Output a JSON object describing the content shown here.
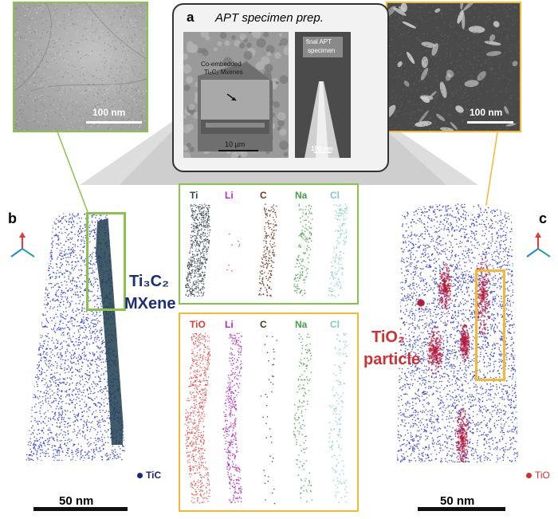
{
  "panels": {
    "a": {
      "letter": "a",
      "title": "APT specimen prep.",
      "annotation": "Co-embedded Ti₃C₂ Mxenes",
      "annotation_line1": "Co-embedded",
      "annotation_line2": "Ti₃C₂ Mxenes",
      "scale_left": "10 µm",
      "tip_label_line1": "final APT",
      "tip_label_line2": "specimen",
      "scale_right": "100 nm"
    },
    "tem_left": {
      "scale": "100 nm"
    },
    "tem_right": {
      "scale": "100 nm"
    },
    "b": {
      "letter": "b",
      "legend_label": "TiC",
      "legend_color": "#1a237e",
      "scale": "50 nm",
      "feature_line1": "Ti₃C₂",
      "feature_line2": "MXene",
      "feature_color": "#1a2e7a"
    },
    "c": {
      "letter": "c",
      "legend_label": "TiO",
      "legend_color": "#d32f2f",
      "scale": "50 nm",
      "feature_line1": "TiO₂",
      "feature_line2": "particle",
      "feature_color": "#d32f2f"
    }
  },
  "elemental_maps": {
    "top": {
      "border_color": "#8bc34a",
      "labels": [
        {
          "text": "Ti",
          "color": "#37474f"
        },
        {
          "text": "Li",
          "color": "#c026d3"
        },
        {
          "text": "C",
          "color": "#6d3b1f"
        },
        {
          "text": "Na",
          "color": "#43a047"
        },
        {
          "text": "Cl",
          "color": "#80cbc4"
        }
      ]
    },
    "bottom": {
      "border_color": "#f5b82e",
      "labels": [
        {
          "text": "TiO",
          "color": "#e53935"
        },
        {
          "text": "Li",
          "color": "#b026c0"
        },
        {
          "text": "C",
          "color": "#4a3426"
        },
        {
          "text": "Na",
          "color": "#43a047"
        },
        {
          "text": "Cl",
          "color": "#80cbc4"
        }
      ]
    }
  },
  "colors": {
    "green_frame": "#8bc34a",
    "orange_frame": "#f5b82e",
    "atom_blue": "#1f2fd6"
  }
}
